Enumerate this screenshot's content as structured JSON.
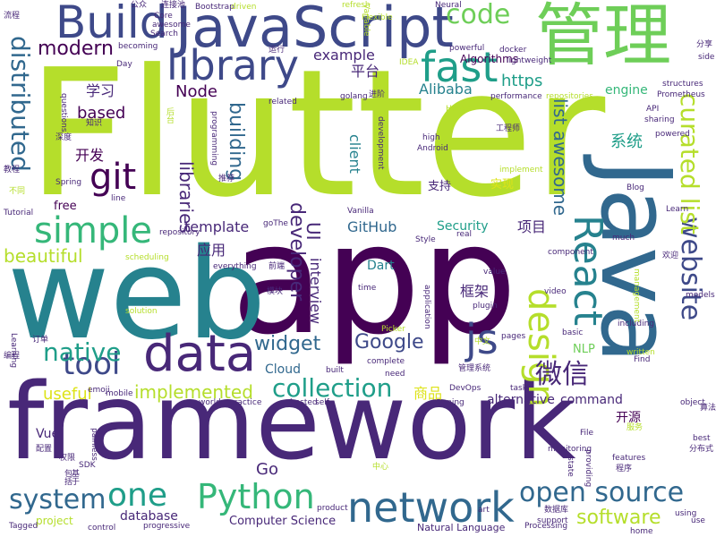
{
  "palette": {
    "purple": "#440154",
    "indigo": "#482878",
    "blue": "#3e4989",
    "steel": "#31688e",
    "teal": "#26828e",
    "cyan": "#1f9e89",
    "green": "#35b779",
    "lime": "#6ece58",
    "yellow_green": "#b5de2b",
    "yellow": "#dde318"
  },
  "words": [
    {
      "text": "Flutter"
    },
    {
      "text": "app"
    },
    {
      "text": "web"
    },
    {
      "text": "framework"
    },
    {
      "text": "Java"
    },
    {
      "text": "JavaScript"
    },
    {
      "text": "管理"
    },
    {
      "text": "Build"
    },
    {
      "text": "library"
    },
    {
      "text": "data"
    },
    {
      "text": "fast"
    },
    {
      "text": "React"
    },
    {
      "text": "network"
    },
    {
      "text": "js"
    },
    {
      "text": "git"
    },
    {
      "text": "simple"
    },
    {
      "text": "design"
    },
    {
      "text": "one"
    },
    {
      "text": "Python"
    },
    {
      "text": "code"
    },
    {
      "text": "open source"
    },
    {
      "text": "system"
    },
    {
      "text": "tool"
    },
    {
      "text": "website"
    },
    {
      "text": "curated list"
    },
    {
      "text": "distributed"
    },
    {
      "text": "collection"
    },
    {
      "text": "modern"
    },
    {
      "text": "微信"
    },
    {
      "text": "native"
    },
    {
      "text": "Google"
    },
    {
      "text": "widget"
    },
    {
      "text": "software"
    },
    {
      "text": "developer"
    },
    {
      "text": "building"
    },
    {
      "text": "libraries"
    },
    {
      "text": "beautiful"
    },
    {
      "text": "implemented"
    },
    {
      "text": "useful"
    },
    {
      "text": "example"
    },
    {
      "text": "Alibaba"
    },
    {
      "text": "https"
    },
    {
      "text": "Node"
    },
    {
      "text": "学习"
    },
    {
      "text": "based"
    },
    {
      "text": "开发"
    },
    {
      "text": "平台"
    },
    {
      "text": "list awesome"
    },
    {
      "text": "系统"
    },
    {
      "text": "engine"
    },
    {
      "text": "Algorithms"
    },
    {
      "text": "template"
    },
    {
      "text": "GitHub"
    },
    {
      "text": "UI"
    },
    {
      "text": "应用"
    },
    {
      "text": "Security"
    },
    {
      "text": "项目"
    },
    {
      "text": "interview"
    },
    {
      "text": "框架"
    },
    {
      "text": "client"
    },
    {
      "text": "Dart"
    },
    {
      "text": "商品"
    },
    {
      "text": "Go"
    },
    {
      "text": "Vue"
    },
    {
      "text": "database"
    },
    {
      "text": "alternative"
    },
    {
      "text": "command"
    },
    {
      "text": "Computer Science"
    },
    {
      "text": "Cloud"
    },
    {
      "text": "开源"
    },
    {
      "text": "free"
    },
    {
      "text": "NLP"
    },
    {
      "text": "支持"
    },
    {
      "text": "实现"
    },
    {
      "text": "project"
    },
    {
      "text": "Natural Language"
    },
    {
      "text": "Tagged"
    },
    {
      "text": "progressive"
    },
    {
      "text": "control"
    },
    {
      "text": "emoji"
    },
    {
      "text": "mobile"
    },
    {
      "text": "world"
    },
    {
      "text": "practice"
    },
    {
      "text": "hosted"
    },
    {
      "text": "self"
    },
    {
      "text": "running"
    },
    {
      "text": "built"
    },
    {
      "text": "need"
    },
    {
      "text": "complete"
    },
    {
      "text": "time"
    },
    {
      "text": "value"
    },
    {
      "text": "plugin"
    },
    {
      "text": "pages"
    },
    {
      "text": "basic"
    },
    {
      "text": "Processing"
    },
    {
      "text": "support"
    },
    {
      "text": "home"
    },
    {
      "text": "using"
    },
    {
      "text": "use"
    },
    {
      "text": "art"
    },
    {
      "text": "product"
    },
    {
      "text": "SDK"
    },
    {
      "text": "Tutorial"
    },
    {
      "text": "Learning"
    },
    {
      "text": "Core"
    },
    {
      "text": "Bootstrap"
    },
    {
      "text": "awesome"
    },
    {
      "text": "Search"
    },
    {
      "text": "Day"
    },
    {
      "text": "becoming"
    },
    {
      "text": "docker"
    },
    {
      "text": "lightweight"
    },
    {
      "text": "powerful"
    },
    {
      "text": "Neural"
    },
    {
      "text": "refresh"
    },
    {
      "text": "IDEA"
    },
    {
      "text": "golang"
    },
    {
      "text": "related"
    },
    {
      "text": "performance"
    },
    {
      "text": "repositories"
    },
    {
      "text": "Prometheus"
    },
    {
      "text": "structures"
    },
    {
      "text": "side"
    },
    {
      "text": "API"
    },
    {
      "text": "sharing"
    },
    {
      "text": "Blog"
    },
    {
      "text": "Learn"
    },
    {
      "text": "much"
    },
    {
      "text": "video"
    },
    {
      "text": "component"
    },
    {
      "text": "real"
    },
    {
      "text": "Style"
    },
    {
      "text": "Find"
    },
    {
      "text": "models"
    },
    {
      "text": "written"
    },
    {
      "text": "including"
    },
    {
      "text": "task"
    },
    {
      "text": "object"
    },
    {
      "text": "best"
    },
    {
      "text": "features"
    },
    {
      "text": "state"
    },
    {
      "text": "Picker"
    },
    {
      "text": "solution"
    },
    {
      "text": "scheduling"
    },
    {
      "text": "everything"
    },
    {
      "text": "repository"
    },
    {
      "text": "Spring"
    },
    {
      "text": "high"
    },
    {
      "text": "Android"
    },
    {
      "text": "Hooks"
    },
    {
      "text": "implement"
    },
    {
      "text": "Vanilla"
    },
    {
      "text": "line"
    },
    {
      "text": "questions"
    },
    {
      "text": "programming"
    },
    {
      "text": "development"
    },
    {
      "text": "goThe"
    },
    {
      "text": "management"
    },
    {
      "text": "application"
    },
    {
      "text": "painless"
    },
    {
      "text": "DevOps"
    },
    {
      "text": "流程"
    },
    {
      "text": "公众"
    },
    {
      "text": "连接池"
    },
    {
      "text": "运行"
    },
    {
      "text": "分享"
    },
    {
      "text": "工程师"
    },
    {
      "text": "欢迎"
    },
    {
      "text": "推荐"
    },
    {
      "text": "模块"
    },
    {
      "text": "中文"
    },
    {
      "text": "订单"
    },
    {
      "text": "编程"
    },
    {
      "text": "管理系统"
    },
    {
      "text": "配置"
    },
    {
      "text": "权限"
    },
    {
      "text": "数据库"
    },
    {
      "text": "程序"
    },
    {
      "text": "分布式"
    },
    {
      "text": "深度"
    },
    {
      "text": "不同"
    },
    {
      "text": "知识"
    },
    {
      "text": "基于"
    },
    {
      "text": "包括"
    },
    {
      "text": "前端"
    },
    {
      "text": "服务"
    },
    {
      "text": "中心"
    },
    {
      "text": "进阶"
    },
    {
      "text": "算法"
    },
    {
      "text": "后台"
    },
    {
      "text": "教程"
    },
    {
      "text": "driven"
    },
    {
      "text": "Variable"
    },
    {
      "text": "File"
    },
    {
      "text": "monitoring"
    },
    {
      "text": "providing"
    },
    {
      "text": "powered"
    },
    {
      "text": "Flexible"
    }
  ]
}
